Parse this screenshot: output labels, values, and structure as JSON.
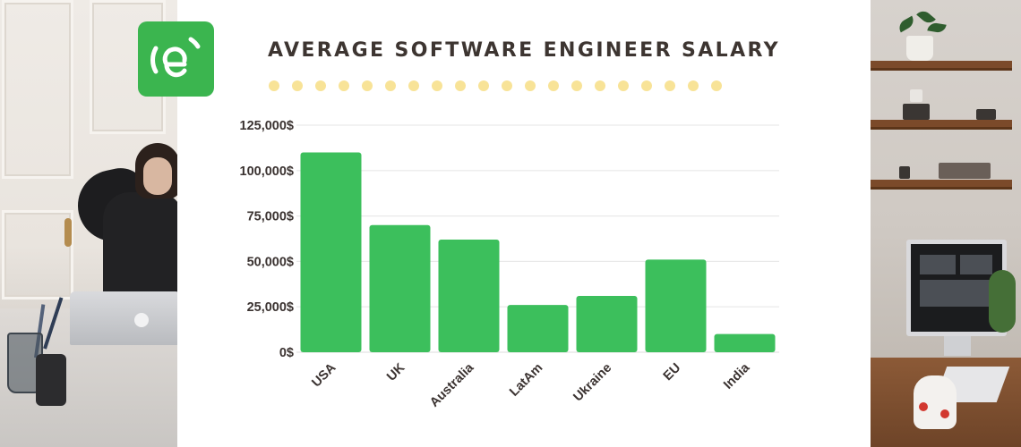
{
  "title": "AVERAGE SOFTWARE ENGINEER SALARY",
  "logo": {
    "name": "e-logo",
    "color": "#3bb54f"
  },
  "decor": {
    "dot_color": "#f8e397",
    "dot_count": 20
  },
  "colors": {
    "bar": "#3cbf5c",
    "title": "#3d3531",
    "text": "#3b3331"
  },
  "chart_data": {
    "type": "bar",
    "title": "AVERAGE SOFTWARE ENGINEER SALARY",
    "xlabel": "",
    "ylabel": "",
    "categories": [
      "USA",
      "UK",
      "Australia",
      "LatAm",
      "Ukraine",
      "EU",
      "India"
    ],
    "values": [
      110000,
      70000,
      62000,
      26000,
      31000,
      51000,
      10000
    ],
    "ylim": [
      0,
      125000
    ],
    "yticks": [
      0,
      25000,
      50000,
      75000,
      100000,
      125000
    ],
    "ytick_labels": [
      "0$",
      "25,000$",
      "50,000$",
      "75,000$",
      "100,000$",
      "125,000$"
    ],
    "grid": true,
    "legend": "none"
  }
}
